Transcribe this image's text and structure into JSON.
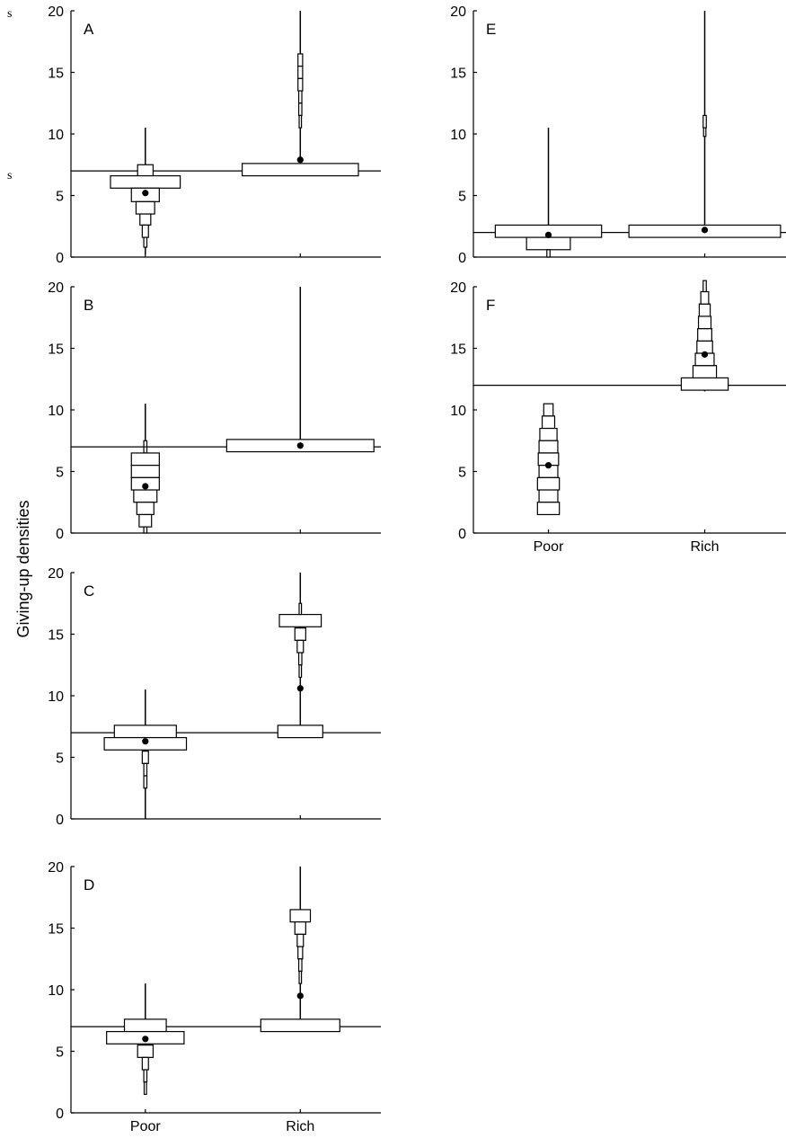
{
  "fragments": [
    "s",
    "s"
  ],
  "ylabel": "Giving-up densities",
  "chart_data": [
    {
      "type": "box",
      "panel": "A",
      "categories": [
        "Poor",
        "Rich"
      ],
      "ylim": [
        0,
        20
      ],
      "yticks": [
        0,
        5,
        10,
        15,
        20
      ],
      "reference_line": 7,
      "show_x_labels": false,
      "groups": [
        {
          "category": "Poor",
          "whisker": [
            0.2,
            10.5
          ],
          "median": 5.2,
          "boxes": [
            {
              "lo": 6.5,
              "hi": 7.5,
              "w": 0.1
            },
            {
              "lo": 5.6,
              "hi": 6.6,
              "w": 0.45
            },
            {
              "lo": 4.5,
              "hi": 5.6,
              "w": 0.18
            },
            {
              "lo": 3.5,
              "hi": 4.5,
              "w": 0.12
            },
            {
              "lo": 2.6,
              "hi": 3.5,
              "w": 0.07
            },
            {
              "lo": 1.6,
              "hi": 2.6,
              "w": 0.04
            },
            {
              "lo": 0.8,
              "hi": 1.6,
              "w": 0.02
            }
          ]
        },
        {
          "category": "Rich",
          "whisker": [
            7.5,
            20
          ],
          "median": 7.9,
          "boxes": [
            {
              "lo": 6.6,
              "hi": 7.6,
              "w": 0.75
            },
            {
              "lo": 15.5,
              "hi": 16.5,
              "w": 0.03
            },
            {
              "lo": 14.5,
              "hi": 15.5,
              "w": 0.03
            },
            {
              "lo": 13.5,
              "hi": 14.5,
              "w": 0.03
            },
            {
              "lo": 12.5,
              "hi": 13.5,
              "w": 0.02
            },
            {
              "lo": 11.5,
              "hi": 12.5,
              "w": 0.02
            },
            {
              "lo": 10.5,
              "hi": 11.5,
              "w": 0.015
            }
          ]
        }
      ]
    },
    {
      "type": "box",
      "panel": "B",
      "categories": [
        "Poor",
        "Rich"
      ],
      "ylim": [
        0,
        20
      ],
      "yticks": [
        0,
        5,
        10,
        15,
        20
      ],
      "reference_line": 7,
      "show_x_labels": false,
      "groups": [
        {
          "category": "Poor",
          "whisker": [
            0,
            10.5
          ],
          "median": 3.8,
          "boxes": [
            {
              "lo": 7.0,
              "hi": 7.5,
              "w": 0.02
            },
            {
              "lo": 6.5,
              "hi": 7.0,
              "w": 0.02
            },
            {
              "lo": 5.5,
              "hi": 6.5,
              "w": 0.18
            },
            {
              "lo": 4.5,
              "hi": 5.5,
              "w": 0.18
            },
            {
              "lo": 3.5,
              "hi": 4.5,
              "w": 0.18
            },
            {
              "lo": 2.5,
              "hi": 3.5,
              "w": 0.15
            },
            {
              "lo": 1.5,
              "hi": 2.5,
              "w": 0.11
            },
            {
              "lo": 0.5,
              "hi": 1.5,
              "w": 0.08
            },
            {
              "lo": 0.0,
              "hi": 0.5,
              "w": 0.02
            }
          ]
        },
        {
          "category": "Rich",
          "whisker": [
            7.5,
            20
          ],
          "median": 7.1,
          "boxes": [
            {
              "lo": 6.6,
              "hi": 7.6,
              "w": 0.95
            }
          ]
        }
      ]
    },
    {
      "type": "box",
      "panel": "C",
      "categories": [
        "Poor",
        "Rich"
      ],
      "ylim": [
        0,
        20
      ],
      "yticks": [
        0,
        5,
        10,
        15,
        20
      ],
      "reference_line": 7,
      "show_x_labels": false,
      "groups": [
        {
          "category": "Poor",
          "whisker": [
            0,
            10.5
          ],
          "median": 6.3,
          "boxes": [
            {
              "lo": 6.6,
              "hi": 7.6,
              "w": 0.4
            },
            {
              "lo": 5.6,
              "hi": 6.6,
              "w": 0.53
            },
            {
              "lo": 4.5,
              "hi": 5.5,
              "w": 0.04
            },
            {
              "lo": 3.5,
              "hi": 4.5,
              "w": 0.02
            },
            {
              "lo": 2.5,
              "hi": 3.5,
              "w": 0.02
            }
          ]
        },
        {
          "category": "Rich",
          "whisker": [
            7.5,
            20
          ],
          "median": 10.6,
          "boxes": [
            {
              "lo": 6.6,
              "hi": 7.6,
              "w": 0.29
            },
            {
              "lo": 15.6,
              "hi": 16.6,
              "w": 0.27
            },
            {
              "lo": 14.5,
              "hi": 15.5,
              "w": 0.07
            },
            {
              "lo": 13.5,
              "hi": 14.5,
              "w": 0.04
            },
            {
              "lo": 12.5,
              "hi": 13.5,
              "w": 0.02
            },
            {
              "lo": 11.5,
              "hi": 12.5,
              "w": 0.015
            },
            {
              "lo": 16.6,
              "hi": 17.5,
              "w": 0.015
            }
          ]
        }
      ]
    },
    {
      "type": "box",
      "panel": "D",
      "categories": [
        "Poor",
        "Rich"
      ],
      "ylim": [
        0,
        20
      ],
      "yticks": [
        0,
        5,
        10,
        15,
        20
      ],
      "reference_line": 7,
      "show_x_labels": true,
      "groups": [
        {
          "category": "Poor",
          "whisker": [
            1.5,
            10.5
          ],
          "median": 6.0,
          "boxes": [
            {
              "lo": 6.6,
              "hi": 7.6,
              "w": 0.27
            },
            {
              "lo": 5.6,
              "hi": 6.6,
              "w": 0.5
            },
            {
              "lo": 4.5,
              "hi": 5.5,
              "w": 0.1
            },
            {
              "lo": 3.5,
              "hi": 4.5,
              "w": 0.04
            },
            {
              "lo": 2.5,
              "hi": 3.5,
              "w": 0.02
            },
            {
              "lo": 1.5,
              "hi": 2.5,
              "w": 0.015
            }
          ]
        },
        {
          "category": "Rich",
          "whisker": [
            7.5,
            20
          ],
          "median": 9.5,
          "boxes": [
            {
              "lo": 6.6,
              "hi": 7.6,
              "w": 0.51
            },
            {
              "lo": 15.5,
              "hi": 16.5,
              "w": 0.13
            },
            {
              "lo": 14.5,
              "hi": 15.5,
              "w": 0.07
            },
            {
              "lo": 13.5,
              "hi": 14.5,
              "w": 0.04
            },
            {
              "lo": 12.5,
              "hi": 13.5,
              "w": 0.03
            },
            {
              "lo": 11.5,
              "hi": 12.5,
              "w": 0.02
            },
            {
              "lo": 10.5,
              "hi": 11.5,
              "w": 0.015
            }
          ]
        }
      ]
    },
    {
      "type": "box",
      "panel": "E",
      "categories": [
        "Poor",
        "Rich"
      ],
      "ylim": [
        0,
        20
      ],
      "yticks": [
        0,
        5,
        10,
        15,
        20
      ],
      "reference_line": 2,
      "show_x_labels": false,
      "groups": [
        {
          "category": "Poor",
          "whisker": [
            0,
            10.5
          ],
          "median": 1.8,
          "boxes": [
            {
              "lo": 1.6,
              "hi": 2.6,
              "w": 0.68
            },
            {
              "lo": 0.6,
              "hi": 1.6,
              "w": 0.28
            },
            {
              "lo": 0.0,
              "hi": 0.6,
              "w": 0.02
            }
          ]
        },
        {
          "category": "Rich",
          "whisker": [
            2.5,
            20
          ],
          "median": 2.2,
          "boxes": [
            {
              "lo": 1.6,
              "hi": 2.6,
              "w": 0.97
            },
            {
              "lo": 10.5,
              "hi": 11.5,
              "w": 0.02
            },
            {
              "lo": 9.8,
              "hi": 10.5,
              "w": 0.015
            }
          ]
        }
      ]
    },
    {
      "type": "box",
      "panel": "F",
      "categories": [
        "Poor",
        "Rich"
      ],
      "ylim": [
        0,
        20
      ],
      "yticks": [
        0,
        5,
        10,
        15,
        20
      ],
      "reference_line": 12,
      "show_x_labels": true,
      "groups": [
        {
          "category": "Poor",
          "whisker": [
            1.5,
            10.5
          ],
          "median": 5.5,
          "boxes": [
            {
              "lo": 9.5,
              "hi": 10.5,
              "w": 0.06
            },
            {
              "lo": 8.5,
              "hi": 9.5,
              "w": 0.08
            },
            {
              "lo": 7.5,
              "hi": 8.5,
              "w": 0.11
            },
            {
              "lo": 6.5,
              "hi": 7.5,
              "w": 0.12
            },
            {
              "lo": 5.5,
              "hi": 6.5,
              "w": 0.13
            },
            {
              "lo": 4.5,
              "hi": 5.5,
              "w": 0.12
            },
            {
              "lo": 3.5,
              "hi": 4.5,
              "w": 0.14
            },
            {
              "lo": 2.5,
              "hi": 3.5,
              "w": 0.12
            },
            {
              "lo": 1.5,
              "hi": 2.5,
              "w": 0.14
            }
          ]
        },
        {
          "category": "Rich",
          "whisker": [
            11.5,
            20.5
          ],
          "median": 14.5,
          "boxes": [
            {
              "lo": 11.6,
              "hi": 12.6,
              "w": 0.3
            },
            {
              "lo": 12.6,
              "hi": 13.6,
              "w": 0.15
            },
            {
              "lo": 13.6,
              "hi": 14.6,
              "w": 0.12
            },
            {
              "lo": 14.6,
              "hi": 15.6,
              "w": 0.1
            },
            {
              "lo": 15.6,
              "hi": 16.6,
              "w": 0.09
            },
            {
              "lo": 16.6,
              "hi": 17.6,
              "w": 0.08
            },
            {
              "lo": 17.6,
              "hi": 18.6,
              "w": 0.07
            },
            {
              "lo": 18.6,
              "hi": 19.6,
              "w": 0.05
            },
            {
              "lo": 19.6,
              "hi": 20.5,
              "w": 0.02
            }
          ]
        }
      ]
    }
  ]
}
